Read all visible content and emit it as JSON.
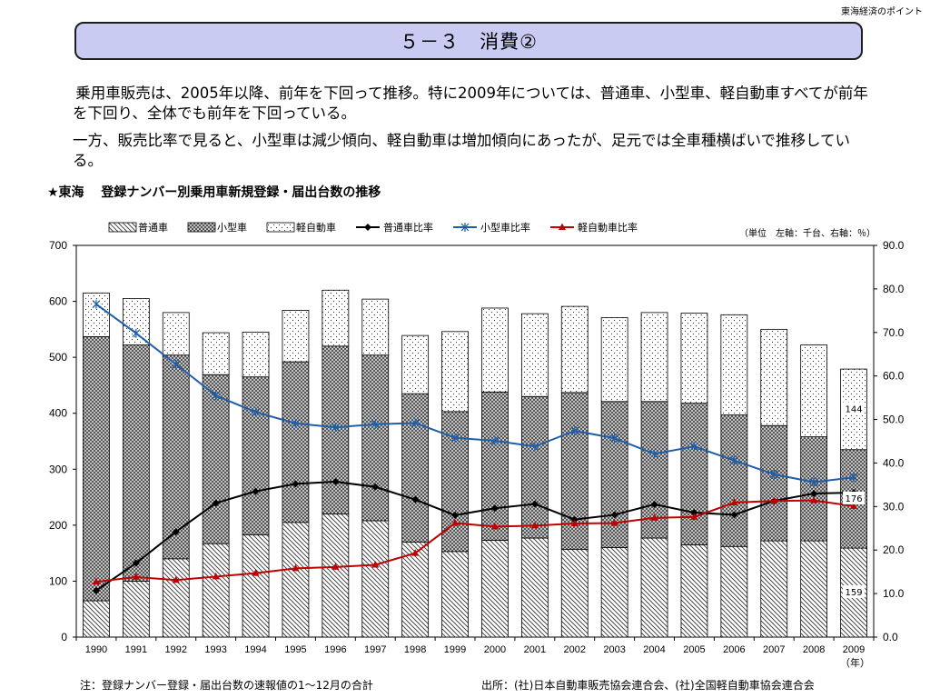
{
  "header": {
    "corner_label": "東海経済のポイント",
    "title": "５－３　消費②"
  },
  "body": {
    "paragraph1": "乗用車販売は、2005年以降、前年を下回って推移。特に2009年については、普通車、小型車、軽自動車すべてが前年を下回り、全体でも前年を下回っている。",
    "paragraph2": "一方、販売比率で見ると、小型車は減少傾向、軽自動車は増加傾向にあったが、足元では全車種横ばいで推移している。"
  },
  "chart_subtitle": "★東海　 登録ナンバー別乗用車新規登録・届出台数の推移",
  "footer": {
    "note": "注：登録ナンバー登録・届出台数の速報値の1～12月の合計",
    "source": "出所：(社)日本自動車販売協会連合会、(社)全国軽自動車協会連合会"
  },
  "chart_data": {
    "type": "bar",
    "stacked": true,
    "unit_note": "（単位　左軸：千台、右軸：％）",
    "xlabel": "（年）",
    "categories": [
      "1990",
      "1991",
      "1992",
      "1993",
      "1994",
      "1995",
      "1996",
      "1997",
      "1998",
      "1999",
      "2000",
      "2001",
      "2002",
      "2003",
      "2004",
      "2005",
      "2006",
      "2007",
      "2008",
      "2009"
    ],
    "ylim_left": [
      0,
      700
    ],
    "yticks_left": [
      "0",
      "100",
      "200",
      "300",
      "400",
      "500",
      "600",
      "700"
    ],
    "ylim_right": [
      0,
      90
    ],
    "yticks_right": [
      "0.0",
      "10.0",
      "20.0",
      "30.0",
      "40.0",
      "50.0",
      "60.0",
      "70.0",
      "80.0",
      "90.0"
    ],
    "bar_series": [
      {
        "name": "普通車",
        "pattern": "diagonal",
        "values": [
          65,
          100,
          140,
          167,
          183,
          205,
          220,
          208,
          170,
          153,
          173,
          177,
          157,
          160,
          177,
          165,
          162,
          172,
          172,
          159
        ]
      },
      {
        "name": "小型車",
        "pattern": "crosshatch",
        "values": [
          472,
          422,
          364,
          302,
          282,
          287,
          300,
          296,
          265,
          250,
          265,
          253,
          280,
          261,
          244,
          253,
          235,
          206,
          186,
          176
        ]
      },
      {
        "name": "軽自動車",
        "pattern": "dots",
        "values": [
          78,
          83,
          76,
          75,
          80,
          92,
          100,
          100,
          104,
          143,
          150,
          148,
          154,
          150,
          159,
          161,
          179,
          172,
          164,
          144
        ]
      }
    ],
    "data_labels": [
      {
        "series": "普通車",
        "category": "2009",
        "text": "159"
      },
      {
        "series": "小型車",
        "category": "2009",
        "text": "176"
      },
      {
        "series": "軽自動車",
        "category": "2009",
        "text": "144"
      }
    ],
    "line_series": [
      {
        "name": "普通車比率",
        "color": "#000000",
        "marker": "diamond",
        "values": [
          10.7,
          17.0,
          24.2,
          30.8,
          33.5,
          35.2,
          35.7,
          34.5,
          31.6,
          28.0,
          29.6,
          30.6,
          27.0,
          28.1,
          30.5,
          28.6,
          28.1,
          31.3,
          33.0,
          33.2
        ]
      },
      {
        "name": "小型車比率",
        "color": "#1f5fa8",
        "marker": "star",
        "values": [
          76.5,
          69.8,
          62.7,
          55.5,
          51.7,
          49.1,
          48.2,
          48.9,
          49.2,
          45.8,
          45.1,
          43.8,
          47.4,
          45.7,
          42.1,
          43.8,
          40.6,
          37.4,
          35.6,
          36.7
        ]
      },
      {
        "name": "軽自動車比率",
        "color": "#c00000",
        "marker": "triangle",
        "values": [
          12.7,
          13.8,
          13.1,
          13.9,
          14.7,
          15.8,
          16.1,
          16.6,
          19.3,
          26.2,
          25.4,
          25.6,
          26.1,
          26.2,
          27.4,
          27.6,
          30.9,
          31.3,
          31.4,
          30.1
        ]
      }
    ],
    "grid": false,
    "legend_position": "top"
  }
}
